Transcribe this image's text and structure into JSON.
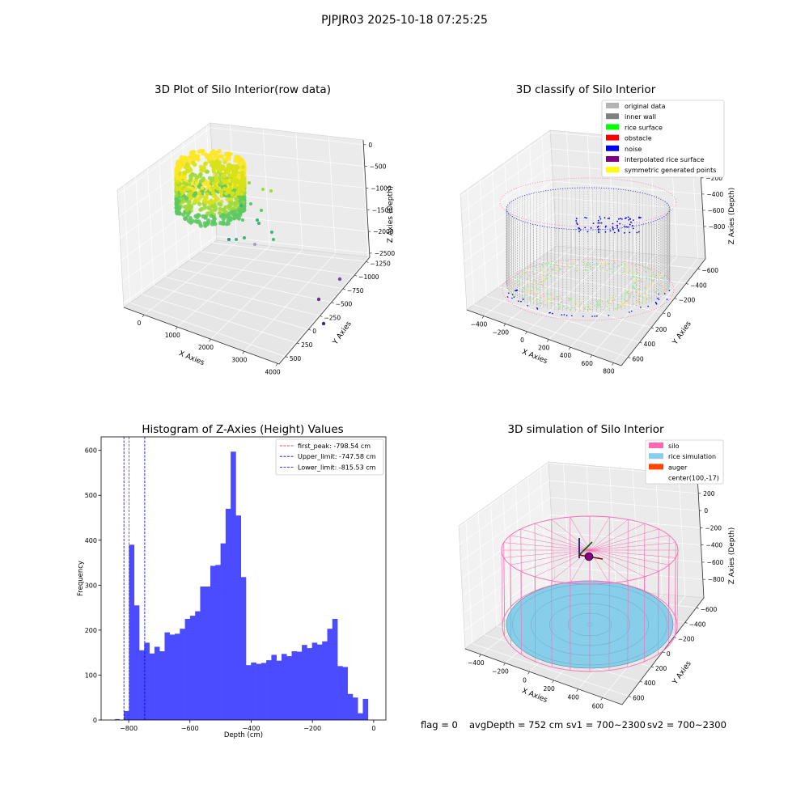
{
  "figure": {
    "suptitle": "PJPJR03 2025-10-18 07:25:25",
    "status": {
      "flag": "flag = 0",
      "avg_depth": "avgDepth = 752 cm",
      "sv1": "sv1 = 700~2300",
      "sv2": "sv2 = 700~2300"
    }
  },
  "colors": {
    "histogram_bar": "#4b4bff",
    "first_peak_line": "#ff0000",
    "limit_lines": "#0000ff",
    "original_data": "#b3b3b3",
    "inner_wall": "#808080",
    "rice_surface": "#00ff00",
    "obstacle": "#ff0000",
    "noise": "#0000ff",
    "interpolated_rice_surface": "#800080",
    "symmetric_generated_points": "#ffff00",
    "silo": "#ff69b4",
    "rice_simulation": "#87ceeb",
    "auger": "#ff4500"
  },
  "chart_data": [
    {
      "type": "scatter3d",
      "title": "3D Plot of Silo Interior(row data)",
      "xlabel": "X Axies",
      "ylabel": "Y Axies",
      "zlabel": "Z Axies (Depth)",
      "x_ticks": [
        "0",
        "1000",
        "2000",
        "3000",
        "4000"
      ],
      "y_ticks": [
        "500",
        "250",
        "0",
        "−250",
        "−500",
        "−750",
        "−1000",
        "−1250"
      ],
      "z_ticks": [
        "0",
        "−500",
        "−1000",
        "−1500",
        "−2000",
        "−2500"
      ],
      "xlim": [
        -700,
        4000
      ],
      "ylim": [
        -1300,
        650
      ],
      "zlim": [
        -2600,
        100
      ],
      "colormap": "viridis",
      "outlier_points": [
        {
          "x": 3280,
          "y": 280,
          "z": -1600
        },
        {
          "x": 3600,
          "y": 250,
          "z": -2300
        },
        {
          "x": 3300,
          "y": -1000,
          "z": -2700
        }
      ]
    },
    {
      "type": "scatter3d",
      "title": "3D classify of Silo Interior",
      "xlabel": "X Axies",
      "ylabel": "Y Axies",
      "zlabel": "Z Axies (Depth)",
      "x_ticks": [
        "−400",
        "−200",
        "0",
        "200",
        "400",
        "600",
        "800"
      ],
      "y_ticks": [
        "600",
        "400",
        "200",
        "0",
        "−200",
        "−400",
        "−600"
      ],
      "z_ticks": [
        "200",
        "0",
        "−200",
        "−400",
        "−600",
        "−800"
      ],
      "xlim": [
        -500,
        800
      ],
      "ylim": [
        -700,
        700
      ],
      "zlim": [
        -900,
        300
      ],
      "legend": [
        {
          "label": "original data",
          "color": "#b3b3b3"
        },
        {
          "label": "inner wall",
          "color": "#808080"
        },
        {
          "label": "rice surface",
          "color": "#00ff00"
        },
        {
          "label": "obstacle",
          "color": "#ff0000"
        },
        {
          "label": "noise",
          "color": "#0000ff"
        },
        {
          "label": "interpolated rice surface",
          "color": "#800080"
        },
        {
          "label": "symmetric generated points",
          "color": "#ffff00"
        }
      ],
      "legend_position": "upper right"
    },
    {
      "type": "bar",
      "title": "Histogram of Z-Axies (Height) Values",
      "xlabel": "Depth (cm)",
      "ylabel": "Frequency",
      "xlim": [
        -890,
        40
      ],
      "ylim": [
        0,
        630
      ],
      "x_ticks": [
        "−800",
        "−600",
        "−400",
        "−200",
        "0"
      ],
      "y_ticks": [
        "0",
        "100",
        "200",
        "300",
        "400",
        "500",
        "600"
      ],
      "bin_start": -815.5,
      "bin_width": 16.6,
      "values": [
        20,
        390,
        255,
        155,
        172,
        148,
        163,
        153,
        195,
        190,
        192,
        203,
        225,
        232,
        242,
        297,
        297,
        343,
        345,
        393,
        470,
        597,
        455,
        318,
        122,
        128,
        125,
        127,
        133,
        145,
        132,
        147,
        142,
        153,
        152,
        167,
        160,
        172,
        168,
        175,
        203,
        225,
        120,
        118,
        58,
        50,
        15,
        47
      ],
      "small_bars": [
        {
          "x": -837,
          "value": 2
        }
      ],
      "vlines": [
        {
          "label": "first_peak: -798.54 cm",
          "x": -798.54,
          "color": "#ff0000"
        },
        {
          "label": "Upper_limit: -747.58 cm",
          "x": -747.58,
          "color": "#0000ff"
        },
        {
          "label": "Lower_limit: -815.53 cm",
          "x": -815.53,
          "color": "#0000ff"
        }
      ],
      "legend_position": "upper right"
    },
    {
      "type": "surface3d",
      "title": "3D simulation of Silo Interior",
      "xlabel": "X Axies",
      "ylabel": "Y Axies",
      "zlabel": "Z Axies (Depth)",
      "x_ticks": [
        "−400",
        "−200",
        "0",
        "200",
        "400",
        "600"
      ],
      "y_ticks": [
        "600",
        "400",
        "200",
        "0",
        "−200",
        "−400",
        "−600"
      ],
      "z_ticks": [
        "400",
        "200",
        "0",
        "−200",
        "−400",
        "−600",
        "−800"
      ],
      "xlim": [
        -550,
        700
      ],
      "ylim": [
        -700,
        700
      ],
      "zlim": [
        -900,
        450
      ],
      "legend": [
        {
          "label": "silo",
          "color": "#ff69b4"
        },
        {
          "label": "rice simulation",
          "color": "#87ceeb"
        },
        {
          "label": "auger",
          "color": "#ff4500"
        },
        {
          "label": "center(100,-17)",
          "color": ""
        }
      ],
      "legend_position": "upper right"
    }
  ]
}
